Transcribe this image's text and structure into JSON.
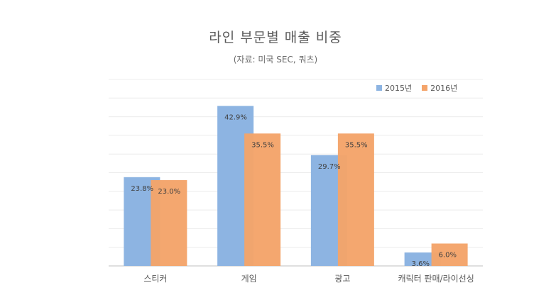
{
  "chart_data": {
    "type": "bar",
    "title": "라인 부문별 매출 비중",
    "subtitle": "(자료: 미국 SEC, 쿼츠)",
    "categories": [
      "스티커",
      "게임",
      "광고",
      "캐릭터 판매/라이선싱"
    ],
    "series": [
      {
        "name": "2015년",
        "color": "#8db4e2",
        "values": [
          23.8,
          42.9,
          29.7,
          3.6
        ],
        "labels": [
          "23.8%",
          "42.9%",
          "29.7%",
          "3.6%"
        ]
      },
      {
        "name": "2016년",
        "color": "#f4a46a",
        "values": [
          23.0,
          35.5,
          35.5,
          6.0
        ],
        "labels": [
          "23.0%",
          "35.5%",
          "35.5%",
          "6.0%"
        ]
      }
    ],
    "ylim": [
      0,
      50
    ],
    "xlabel": "",
    "ylabel": "",
    "grid": true,
    "legend": "top-right"
  }
}
